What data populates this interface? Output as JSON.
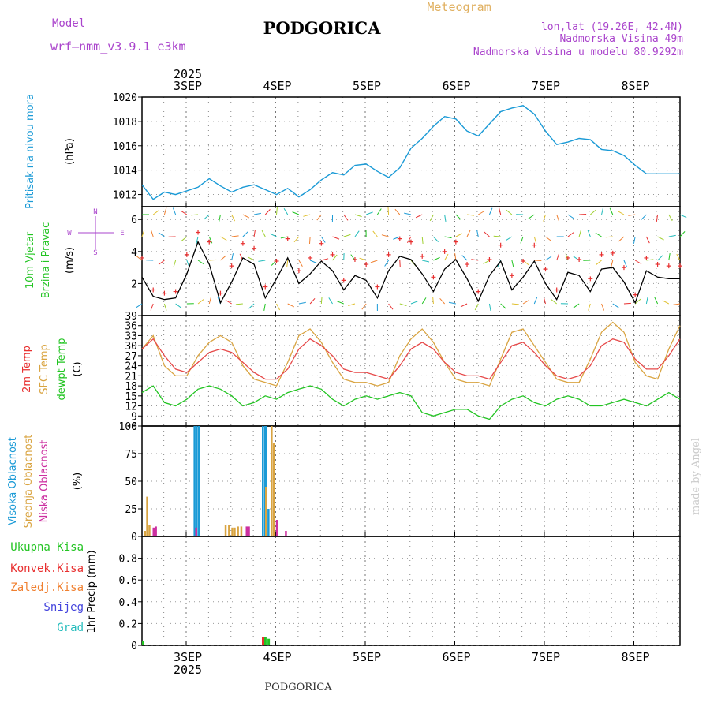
{
  "header": {
    "model_label": "Model",
    "model_name": "wrf—nmm_v3.9.1  e3km",
    "station": "PODGORICA",
    "product": "Meteogram",
    "lonlat": "lon,lat (19.26E, 42.4N)",
    "elevation": "Nadmorska Visina 49m",
    "model_elevation": "Nadmorska Visina u modelu 80.9292m"
  },
  "footer": {
    "station": "PODGORICA",
    "credit": "made by Angel"
  },
  "time_axis": {
    "year": "2025",
    "days": [
      "3SEP",
      "4SEP",
      "5SEP",
      "6SEP",
      "7SEP",
      "8SEP"
    ]
  },
  "colors": {
    "pressure": "#1a9ad6",
    "wind_speed": "#000000",
    "gust": "#e83030",
    "temp2m": "#e64848",
    "sfc_temp": "#d9a441",
    "dewpt": "#22c422",
    "high_cloud": "#1a9ad6",
    "mid_cloud": "#d9a441",
    "low_cloud": "#cc2fa0",
    "total_precip": "#22c422",
    "conv_precip": "#e83030",
    "frz_precip": "#f08030",
    "snow": "#4444dd",
    "graupel": "#22bbbb",
    "title_left": "#aa44cc",
    "product": "#e0b060"
  },
  "chart_data": [
    {
      "type": "line",
      "title": "Pritisak na nivou mora",
      "ylabel": "(hPa)",
      "ylim": [
        1011,
        1020
      ],
      "yticks": [
        "1012",
        "1014",
        "1016",
        "1018",
        "1020"
      ],
      "series": [
        {
          "name": "Pressure",
          "x": [
            0,
            1,
            2,
            3,
            4,
            5,
            6,
            7,
            8,
            9,
            10,
            11,
            12,
            13,
            14,
            15,
            16,
            17,
            18,
            19,
            20,
            21,
            22,
            23,
            24,
            25,
            26,
            27,
            28,
            29,
            30,
            31,
            32,
            33,
            34,
            35,
            36,
            37,
            38,
            39,
            40,
            41,
            42,
            43,
            44,
            45,
            46,
            47,
            48
          ],
          "values": [
            1012.8,
            1011.6,
            1012.2,
            1012.0,
            1012.3,
            1012.6,
            1013.3,
            1012.7,
            1012.2,
            1012.6,
            1012.8,
            1012.4,
            1012.0,
            1012.5,
            1011.8,
            1012.4,
            1013.2,
            1013.8,
            1013.6,
            1014.4,
            1014.5,
            1013.9,
            1013.4,
            1014.2,
            1015.8,
            1016.6,
            1017.6,
            1018.4,
            1018.2,
            1017.2,
            1016.8,
            1017.8,
            1018.8,
            1019.1,
            1019.3,
            1018.6,
            1017.2,
            1016.1,
            1016.3,
            1016.6,
            1016.5,
            1015.7,
            1015.6,
            1015.2,
            1014.4,
            1013.7,
            1013.7,
            1013.7,
            1013.7
          ]
        }
      ]
    },
    {
      "type": "line",
      "title": "10m Vjetar Brzina i Pravac",
      "ylabel": "(m/s)",
      "ylim": [
        0,
        6.8
      ],
      "yticks": [
        "2",
        "4",
        "6"
      ],
      "compass": {
        "n": "N",
        "s": "S",
        "e": "E",
        "w": "W"
      },
      "series": [
        {
          "name": "Wind speed",
          "values": [
            2.4,
            1.2,
            1.0,
            1.1,
            2.6,
            4.6,
            3.2,
            0.8,
            2.1,
            3.6,
            3.2,
            1.1,
            2.3,
            3.6,
            2.0,
            2.6,
            3.4,
            2.8,
            1.6,
            2.5,
            2.2,
            1.1,
            2.8,
            3.7,
            3.5,
            2.6,
            1.5,
            2.9,
            3.5,
            2.3,
            0.9,
            2.5,
            3.4,
            1.6,
            2.4,
            3.4,
            2.0,
            1.0,
            2.7,
            2.5,
            1.5,
            2.9,
            3.0,
            2.1,
            0.8,
            2.8,
            2.4,
            2.3,
            2.3
          ]
        },
        {
          "name": "Gust",
          "values": [
            3.6,
            1.6,
            1.4,
            1.5,
            3.8,
            5.2,
            4.6,
            1.4,
            3.1,
            4.5,
            4.2,
            1.8,
            3.4,
            4.8,
            2.8,
            3.6,
            4.5,
            3.8,
            2.2,
            3.5,
            3.2,
            1.8,
            3.8,
            4.8,
            4.6,
            3.7,
            2.4,
            4.0,
            4.6,
            3.2,
            1.5,
            3.5,
            4.4,
            2.5,
            3.4,
            4.4,
            2.9,
            1.6,
            3.6,
            3.5,
            2.3,
            3.8,
            3.9,
            3.0,
            1.3,
            3.6,
            3.2,
            3.1,
            3.1
          ]
        }
      ]
    },
    {
      "type": "line",
      "title": "2m Temp / SFC Temp / dewpt Temp",
      "ylabel": "(C)",
      "ylim": [
        6,
        39
      ],
      "yticks": [
        "6",
        "9",
        "12",
        "15",
        "18",
        "21",
        "24",
        "27",
        "30",
        "33",
        "36",
        "39"
      ],
      "series": [
        {
          "name": "2m Temp",
          "values": [
            29,
            32,
            27,
            23,
            22,
            25,
            28,
            29,
            28,
            25,
            22,
            20,
            20,
            23,
            29,
            32,
            30,
            27,
            23,
            22,
            22,
            21,
            20,
            24,
            29,
            31,
            29,
            25,
            22,
            21,
            21,
            20,
            25,
            30,
            31,
            28,
            24,
            21,
            20,
            21,
            24,
            30,
            32,
            31,
            26,
            23,
            23,
            27,
            32
          ]
        },
        {
          "name": "SFC Temp",
          "values": [
            29,
            33,
            24,
            21,
            21,
            27,
            31,
            33,
            31,
            24,
            20,
            19,
            18,
            25,
            33,
            35,
            31,
            25,
            20,
            19,
            19,
            18,
            19,
            27,
            32,
            35,
            31,
            25,
            20,
            19,
            19,
            18,
            26,
            34,
            35,
            30,
            25,
            20,
            19,
            19,
            26,
            34,
            37,
            34,
            25,
            21,
            20,
            29,
            36
          ]
        },
        {
          "name": "dewpt Temp",
          "values": [
            16,
            18,
            13,
            12,
            14,
            17,
            18,
            17,
            15,
            12,
            13,
            15,
            14,
            16,
            17,
            18,
            17,
            14,
            12,
            14,
            15,
            14,
            15,
            16,
            15,
            10,
            9,
            10,
            11,
            11,
            9,
            8,
            12,
            14,
            15,
            13,
            12,
            14,
            15,
            14,
            12,
            12,
            13,
            14,
            13,
            12,
            14,
            16,
            14
          ]
        }
      ]
    },
    {
      "type": "bar",
      "title": "Visoka / Srednja / Niska Oblacnost",
      "ylabel": "(%)",
      "ylim": [
        0,
        100
      ],
      "yticks": [
        "0",
        "25",
        "50",
        "75",
        "100"
      ],
      "series": [
        {
          "name": "Visoka Oblacnost",
          "x": [
            4.6,
            4.8,
            5.0,
            10.7,
            10.9,
            11.0,
            11.2
          ],
          "values": [
            100,
            100,
            100,
            100,
            100,
            100,
            25
          ]
        },
        {
          "name": "Srednja Oblacnost",
          "x": [
            0,
            0.2,
            0.4,
            7.2,
            7.5,
            7.8,
            8.0,
            8.3,
            8.6,
            10.8,
            11.3,
            11.5
          ],
          "values": [
            5,
            36,
            10,
            10,
            10,
            8,
            8,
            9,
            9,
            45,
            100,
            85
          ]
        },
        {
          "name": "Niska Oblacnost",
          "x": [
            0.6,
            0.8,
            4.4,
            8.9,
            9.1,
            11.6,
            12.4
          ],
          "values": [
            8,
            9,
            8,
            9,
            9,
            15,
            5
          ]
        }
      ]
    },
    {
      "type": "bar",
      "title": "1hr Precip",
      "ylabel": "1hr Precip (mm)",
      "ylim": [
        0,
        1.0
      ],
      "yticks": [
        "0",
        "0.2",
        "0.4",
        "0.6",
        "0.8"
      ],
      "legend": [
        "Ukupna Kisa",
        "Konvek.Kisa",
        "Zaledj.Kisa",
        "Snijeg",
        "Grad"
      ],
      "series": [
        {
          "name": "Ukupna Kisa",
          "x": [
            0.0,
            10.9,
            11.2
          ],
          "values": [
            0.04,
            0.08,
            0.06
          ]
        },
        {
          "name": "Konvek.Kisa",
          "x": [
            10.7
          ],
          "values": [
            0.08
          ]
        },
        {
          "name": "Zaledj.Kisa",
          "x": [],
          "values": []
        },
        {
          "name": "Snijeg",
          "x": [],
          "values": []
        },
        {
          "name": "Grad",
          "x": [],
          "values": []
        }
      ]
    }
  ]
}
